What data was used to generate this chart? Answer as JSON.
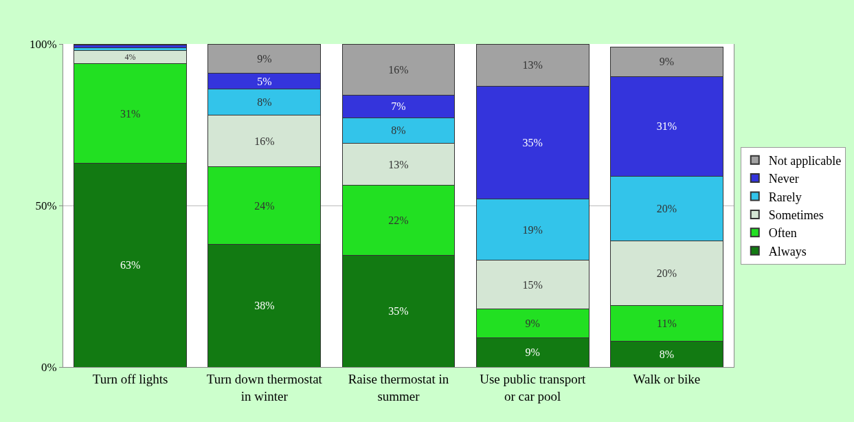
{
  "chart_data": {
    "type": "bar",
    "stacked": true,
    "categories": [
      "Turn off lights",
      "Turn down thermostat in winter",
      "Raise thermostat in summer",
      "Use public transport or car pool",
      "Walk or bike"
    ],
    "series": [
      {
        "name": "Always",
        "color": "#127a12",
        "values": [
          63,
          38,
          34.6,
          9,
          8
        ],
        "value_labels": [
          "63%",
          "38%",
          "35%",
          "9%",
          "8%"
        ]
      },
      {
        "name": "Often",
        "color": "#22e022",
        "values": [
          31,
          24,
          21.6,
          9,
          11
        ],
        "value_labels": [
          "31%",
          "24%",
          "22%",
          "9%",
          "11%"
        ]
      },
      {
        "name": "Sometimes",
        "color": "#d4e6d4",
        "values": [
          4,
          16,
          13,
          15,
          20
        ],
        "value_labels": [
          "4%",
          "16%",
          "13%",
          "15%",
          "20%"
        ]
      },
      {
        "name": "Rarely",
        "color": "#33c4ea",
        "values": [
          0.8,
          8,
          8,
          19,
          20
        ],
        "value_labels": [
          null,
          "8%",
          "8%",
          "19%",
          "20%"
        ]
      },
      {
        "name": "Never",
        "color": "#3434dc",
        "values": [
          0.8,
          5,
          7,
          35,
          31
        ],
        "value_labels": [
          null,
          "5%",
          "7%",
          "35%",
          "31%"
        ]
      },
      {
        "name": "Not applicable",
        "color": "#a2a2a2",
        "values": [
          0.4,
          9,
          15.6,
          13,
          9
        ],
        "value_labels": [
          null,
          "9%",
          "16%",
          "13%",
          "9%"
        ]
      }
    ],
    "ylim": [
      0,
      100
    ],
    "yticks": [
      {
        "value": 0,
        "label": "0%"
      },
      {
        "value": 50,
        "label": "50%"
      },
      {
        "value": 100,
        "label": "100%"
      }
    ],
    "grid": "y",
    "legend": "right"
  }
}
